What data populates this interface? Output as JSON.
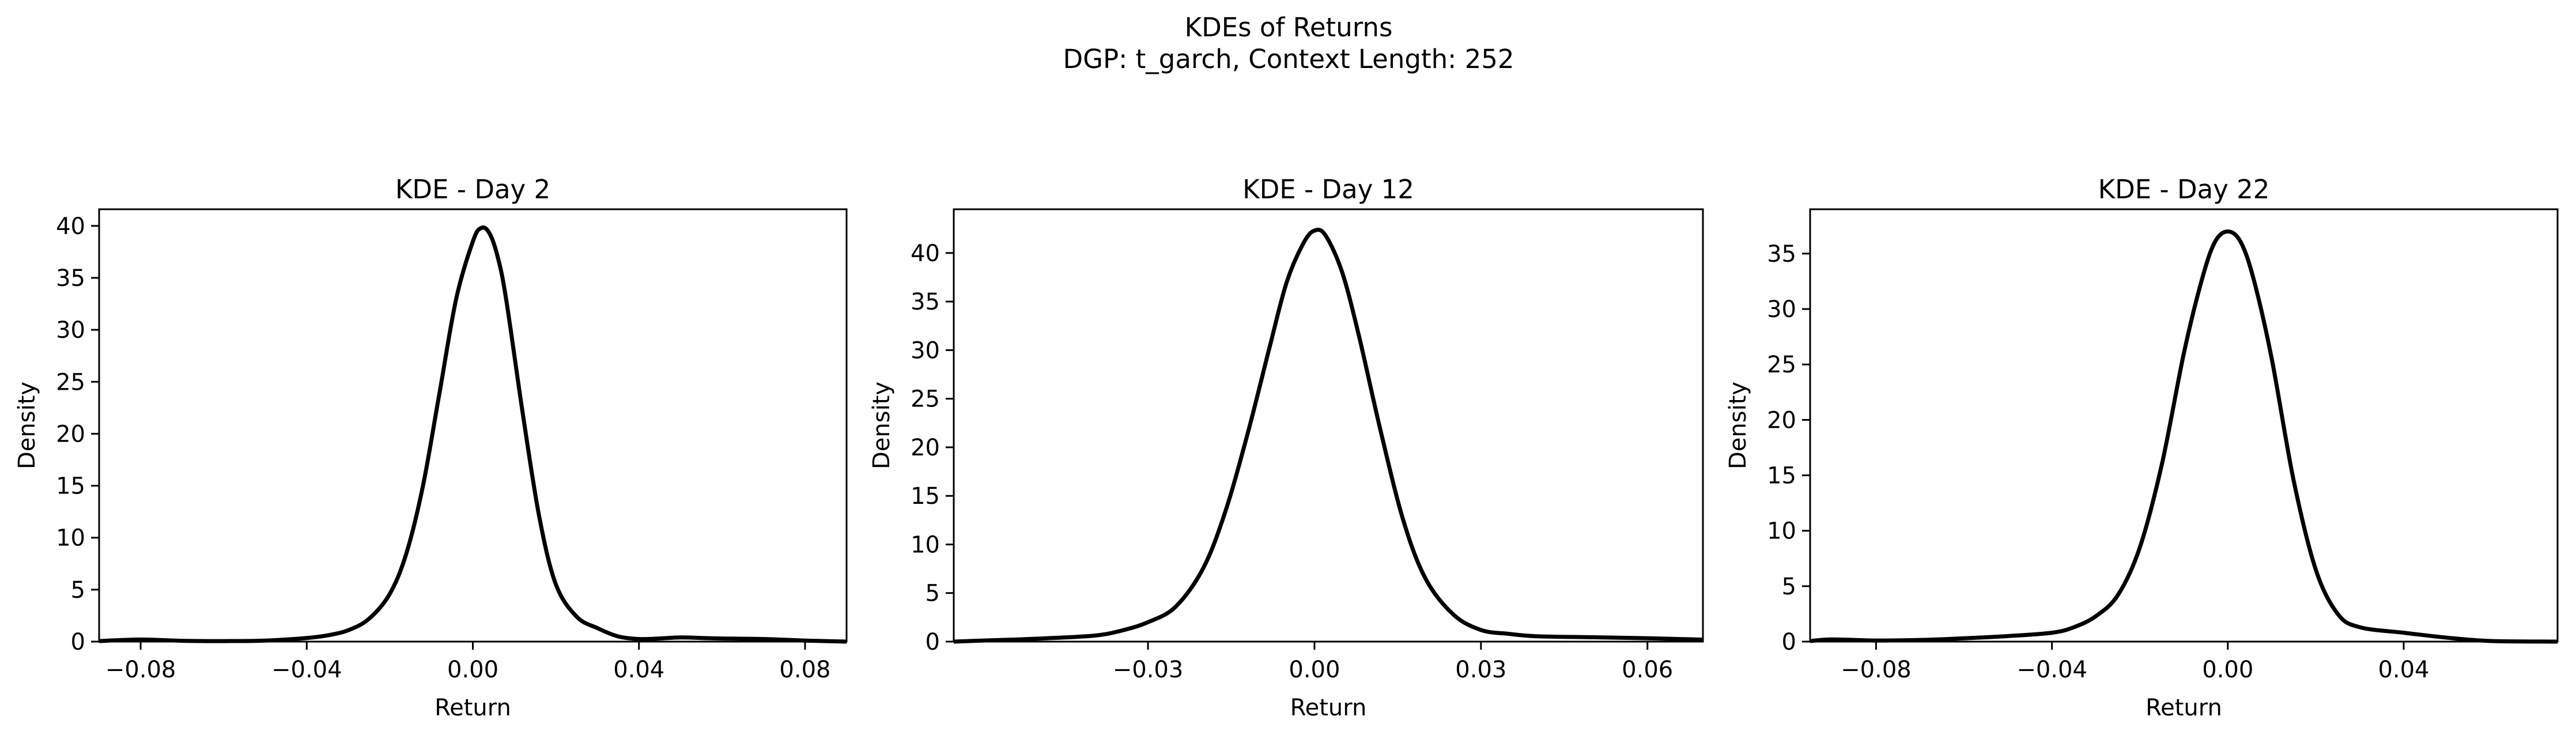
{
  "figure": {
    "suptitle_line1": "KDEs of Returns",
    "suptitle_line2": "DGP: t_garch, Context Length: 252"
  },
  "chart_data": [
    {
      "type": "line",
      "title": "KDE - Day 2",
      "xlabel": "Return",
      "ylabel": "Density",
      "xlim": [
        -0.09,
        0.09
      ],
      "ylim": [
        0,
        41.6
      ],
      "xticks": [
        -0.08,
        -0.04,
        0.0,
        0.04,
        0.08
      ],
      "xtick_labels": [
        "−0.08",
        "−0.04",
        "0.00",
        "0.04",
        "0.08"
      ],
      "yticks": [
        0,
        5,
        10,
        15,
        20,
        25,
        30,
        35,
        40
      ],
      "ytick_labels": [
        "0",
        "5",
        "10",
        "15",
        "20",
        "25",
        "30",
        "35",
        "40"
      ],
      "grid": false,
      "line_color": "#000000",
      "x": [
        -0.09,
        -0.08,
        -0.07,
        -0.06,
        -0.05,
        -0.04,
        -0.035,
        -0.03,
        -0.025,
        -0.02,
        -0.016,
        -0.012,
        -0.008,
        -0.004,
        0.0,
        0.002,
        0.004,
        0.006,
        0.008,
        0.012,
        0.016,
        0.02,
        0.025,
        0.03,
        0.035,
        0.04,
        0.045,
        0.05,
        0.055,
        0.06,
        0.07,
        0.08,
        0.09
      ],
      "y": [
        0.05,
        0.2,
        0.08,
        0.05,
        0.1,
        0.35,
        0.6,
        1.1,
        2.2,
        4.6,
        8.5,
        15.0,
        24.0,
        33.0,
        38.5,
        39.8,
        39.3,
        37.0,
        33.0,
        22.0,
        12.0,
        5.5,
        2.4,
        1.3,
        0.5,
        0.25,
        0.3,
        0.4,
        0.35,
        0.3,
        0.25,
        0.1,
        0.0
      ]
    },
    {
      "type": "line",
      "title": "KDE - Day 12",
      "xlabel": "Return",
      "ylabel": "Density",
      "xlim": [
        -0.065,
        0.07
      ],
      "ylim": [
        0,
        44.5
      ],
      "xticks": [
        -0.03,
        0.0,
        0.03,
        0.06
      ],
      "xtick_labels": [
        "−0.03",
        "0.00",
        "0.03",
        "0.06"
      ],
      "yticks": [
        0,
        5,
        10,
        15,
        20,
        25,
        30,
        35,
        40
      ],
      "ytick_labels": [
        "0",
        "5",
        "10",
        "15",
        "20",
        "25",
        "30",
        "35",
        "40"
      ],
      "grid": false,
      "line_color": "#000000",
      "x": [
        -0.065,
        -0.06,
        -0.05,
        -0.04,
        -0.035,
        -0.03,
        -0.025,
        -0.02,
        -0.016,
        -0.012,
        -0.008,
        -0.005,
        -0.002,
        0.0,
        0.002,
        0.005,
        0.008,
        0.012,
        0.016,
        0.02,
        0.025,
        0.03,
        0.035,
        0.04,
        0.05,
        0.06,
        0.07
      ],
      "y": [
        0.0,
        0.1,
        0.3,
        0.6,
        1.1,
        2.0,
        3.6,
        7.6,
        13.5,
        21.5,
        30.5,
        37.0,
        41.0,
        42.3,
        41.8,
        38.0,
        31.5,
        21.5,
        12.5,
        6.5,
        2.8,
        1.2,
        0.8,
        0.55,
        0.45,
        0.35,
        0.2
      ]
    },
    {
      "type": "line",
      "title": "KDE - Day 22",
      "xlabel": "Return",
      "ylabel": "Density",
      "xlim": [
        -0.095,
        0.075
      ],
      "ylim": [
        0,
        39.0
      ],
      "xticks": [
        -0.08,
        -0.04,
        0.0,
        0.04
      ],
      "xtick_labels": [
        "−0.08",
        "−0.04",
        "0.00",
        "0.04"
      ],
      "yticks": [
        0,
        5,
        10,
        15,
        20,
        25,
        30,
        35
      ],
      "ytick_labels": [
        "0",
        "5",
        "10",
        "15",
        "20",
        "25",
        "30",
        "35"
      ],
      "grid": false,
      "line_color": "#000000",
      "x": [
        -0.095,
        -0.09,
        -0.08,
        -0.07,
        -0.06,
        -0.05,
        -0.04,
        -0.035,
        -0.03,
        -0.025,
        -0.02,
        -0.015,
        -0.01,
        -0.006,
        -0.003,
        0.0,
        0.003,
        0.006,
        0.01,
        0.015,
        0.02,
        0.025,
        0.03,
        0.04,
        0.05,
        0.06,
        0.075
      ],
      "y": [
        0.05,
        0.2,
        0.1,
        0.15,
        0.3,
        0.5,
        0.8,
        1.3,
        2.3,
        4.2,
        8.5,
        16.0,
        26.0,
        32.5,
        36.0,
        37.0,
        36.0,
        32.5,
        25.5,
        14.5,
        6.5,
        2.5,
        1.3,
        0.8,
        0.35,
        0.05,
        0.0
      ]
    }
  ]
}
